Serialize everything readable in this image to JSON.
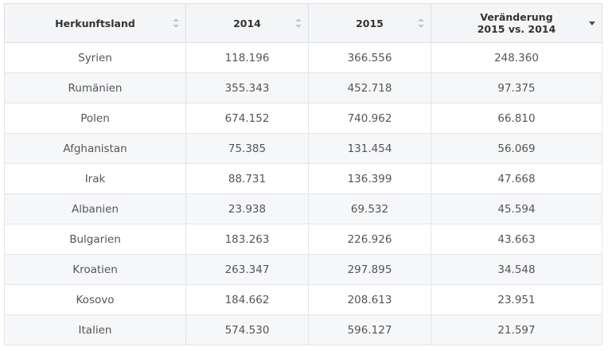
{
  "table": {
    "columns": [
      {
        "label": "Herkunftsland",
        "sort": "none"
      },
      {
        "label": "2014",
        "sort": "none"
      },
      {
        "label": "2015",
        "sort": "none"
      },
      {
        "label": "Veränderung\n2015 vs. 2014",
        "sort": "desc"
      }
    ],
    "rows": [
      [
        "Syrien",
        "118.196",
        "366.556",
        "248.360"
      ],
      [
        "Rumänien",
        "355.343",
        "452.718",
        "97.375"
      ],
      [
        "Polen",
        "674.152",
        "740.962",
        "66.810"
      ],
      [
        "Afghanistan",
        "75.385",
        "131.454",
        "56.069"
      ],
      [
        "Irak",
        "88.731",
        "136.399",
        "47.668"
      ],
      [
        "Albanien",
        "23.938",
        "69.532",
        "45.594"
      ],
      [
        "Bulgarien",
        "183.263",
        "226.926",
        "43.663"
      ],
      [
        "Kroatien",
        "263.347",
        "297.895",
        "34.548"
      ],
      [
        "Kosovo",
        "184.662",
        "208.613",
        "23.951"
      ],
      [
        "Italien",
        "574.530",
        "596.127",
        "21.597"
      ]
    ]
  },
  "colors": {
    "header_bg": "#f4f5f7",
    "row_alt_bg": "#f6f7f9",
    "border": "#dcdfe3",
    "sort_icon_inactive": "#c3c7cc",
    "sort_icon_active": "#4a4f55"
  }
}
